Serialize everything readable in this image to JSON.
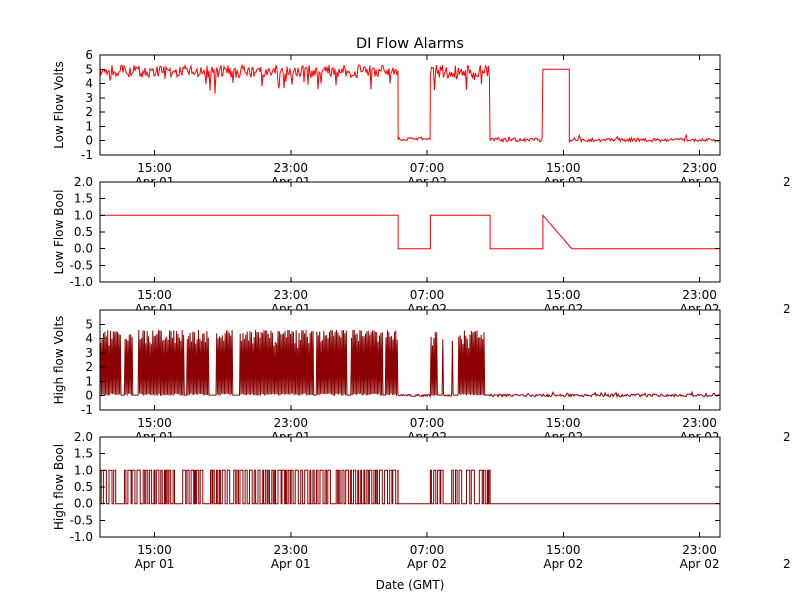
{
  "figure": {
    "title": "DI Flow Alarms",
    "xlabel": "Date (GMT)",
    "background": "#ffffff",
    "frame_color": "#000000",
    "clipped_right_label": "2"
  },
  "x_axis": {
    "lim_hours": [
      11.8,
      48.2
    ],
    "tick_hours": [
      15,
      23,
      31,
      39,
      47
    ],
    "tick_times": [
      "15:00",
      "23:00",
      "07:00",
      "15:00",
      "23:00"
    ],
    "tick_dates": [
      "Apr 01",
      "Apr 01",
      "Apr 02",
      "Apr 02",
      "Apr 02"
    ]
  },
  "chart_data": [
    {
      "type": "line",
      "ylabel": "Low Flow Volts",
      "color": "#ff0000",
      "linewidth": 1,
      "ylim": [
        -1,
        6
      ],
      "ytick_values": [
        -1,
        0,
        1,
        2,
        3,
        4,
        5,
        6
      ],
      "ytick_labels": [
        "-1",
        "0",
        "1",
        "2",
        "3",
        "4",
        "5",
        "6"
      ],
      "segments": [
        {
          "t": [
            11.8,
            29.3
          ],
          "kind": "noise",
          "base": 4.85,
          "spread": 0.45,
          "spike": -1.3,
          "clip": [
            3.3,
            5.3
          ]
        },
        {
          "t": [
            29.3,
            31.2
          ],
          "kind": "noise",
          "base": 0.12,
          "spread": 0.1,
          "spike": 0.15,
          "clip": [
            -0.05,
            0.4
          ]
        },
        {
          "t": [
            31.2,
            34.7
          ],
          "kind": "noise",
          "base": 4.85,
          "spread": 0.45,
          "spike": -1.1,
          "clip": [
            3.4,
            5.3
          ]
        },
        {
          "t": [
            34.7,
            37.8
          ],
          "kind": "noise",
          "base": 0.06,
          "spread": 0.14,
          "spike": 0.3,
          "clip": [
            -0.08,
            0.55
          ]
        },
        {
          "t": [
            37.8,
            39.35
          ],
          "kind": "const",
          "value": 5.0
        },
        {
          "t": [
            39.35,
            48.2
          ],
          "kind": "noise",
          "base": 0.05,
          "spread": 0.12,
          "spike": 0.25,
          "clip": [
            -0.08,
            0.5
          ]
        }
      ]
    },
    {
      "type": "line",
      "ylabel": "Low Flow Bool",
      "color": "#ff0000",
      "linewidth": 1,
      "ylim": [
        -1,
        2
      ],
      "ytick_values": [
        -1,
        -0.5,
        0,
        0.5,
        1,
        1.5,
        2
      ],
      "ytick_labels": [
        "-1.0",
        "-0.5",
        "0.0",
        "0.5",
        "1.0",
        "1.5",
        "2.0"
      ],
      "segments": [
        {
          "kind": "points",
          "points": [
            [
              11.8,
              1
            ],
            [
              29.3,
              1
            ],
            [
              29.3,
              0
            ],
            [
              31.2,
              0
            ],
            [
              31.2,
              1
            ],
            [
              34.7,
              1
            ],
            [
              34.7,
              0
            ],
            [
              37.8,
              0
            ],
            [
              37.8,
              1
            ],
            [
              39.5,
              0
            ],
            [
              48.2,
              0
            ]
          ]
        }
      ]
    },
    {
      "type": "line",
      "ylabel": "High flow Volts",
      "color": "#8b0000",
      "linewidth": 1,
      "ylim": [
        -1,
        6
      ],
      "ytick_values": [
        -1,
        0,
        1,
        2,
        3,
        4,
        5
      ],
      "ytick_labels": [
        "-1",
        "0",
        "1",
        "2",
        "3",
        "4",
        "5"
      ],
      "segments": [
        {
          "t": [
            11.8,
            29.3
          ],
          "kind": "spikes",
          "lo": 0,
          "hi": [
            3.2,
            4.6
          ]
        },
        {
          "t": [
            29.3,
            31.2
          ],
          "kind": "noise",
          "base": 0.02,
          "spread": 0.08,
          "spike": 0.12,
          "clip": [
            -0.12,
            0.25
          ]
        },
        {
          "t": [
            31.2,
            32.0
          ],
          "kind": "spikes",
          "lo": 0,
          "hi": [
            3.2,
            4.6
          ]
        },
        {
          "t": [
            32.0,
            32.45
          ],
          "kind": "noise",
          "base": 0.02,
          "spread": 0.05,
          "spike": 0,
          "clip": [
            -0.1,
            0.15
          ]
        },
        {
          "t": [
            32.45,
            34.7
          ],
          "kind": "spikes",
          "lo": 0,
          "hi": [
            3.2,
            4.6
          ]
        },
        {
          "t": [
            34.7,
            48.2
          ],
          "kind": "noise",
          "base": 0.02,
          "spread": 0.1,
          "spike": 0.18,
          "clip": [
            -0.12,
            0.3
          ]
        }
      ]
    },
    {
      "type": "line",
      "ylabel": "High flow Bool",
      "color": "#8b0000",
      "linewidth": 1,
      "ylim": [
        -1,
        2
      ],
      "ytick_values": [
        -1,
        -0.5,
        0,
        0.5,
        1,
        1.5,
        2
      ],
      "ytick_labels": [
        "-1.0",
        "-0.5",
        "0.0",
        "0.5",
        "1.0",
        "1.5",
        "2.0"
      ],
      "segments": [
        {
          "t": [
            11.8,
            29.3
          ],
          "kind": "telegraph",
          "lo": 0,
          "hi": 1
        },
        {
          "t": [
            29.3,
            31.2
          ],
          "kind": "const",
          "value": 0
        },
        {
          "t": [
            31.2,
            32.0
          ],
          "kind": "telegraph",
          "lo": 0,
          "hi": 1
        },
        {
          "t": [
            32.0,
            32.45
          ],
          "kind": "const",
          "value": 0
        },
        {
          "t": [
            32.45,
            34.7
          ],
          "kind": "telegraph",
          "lo": 0,
          "hi": 1
        },
        {
          "t": [
            34.7,
            48.2
          ],
          "kind": "const",
          "value": 0
        }
      ]
    }
  ]
}
